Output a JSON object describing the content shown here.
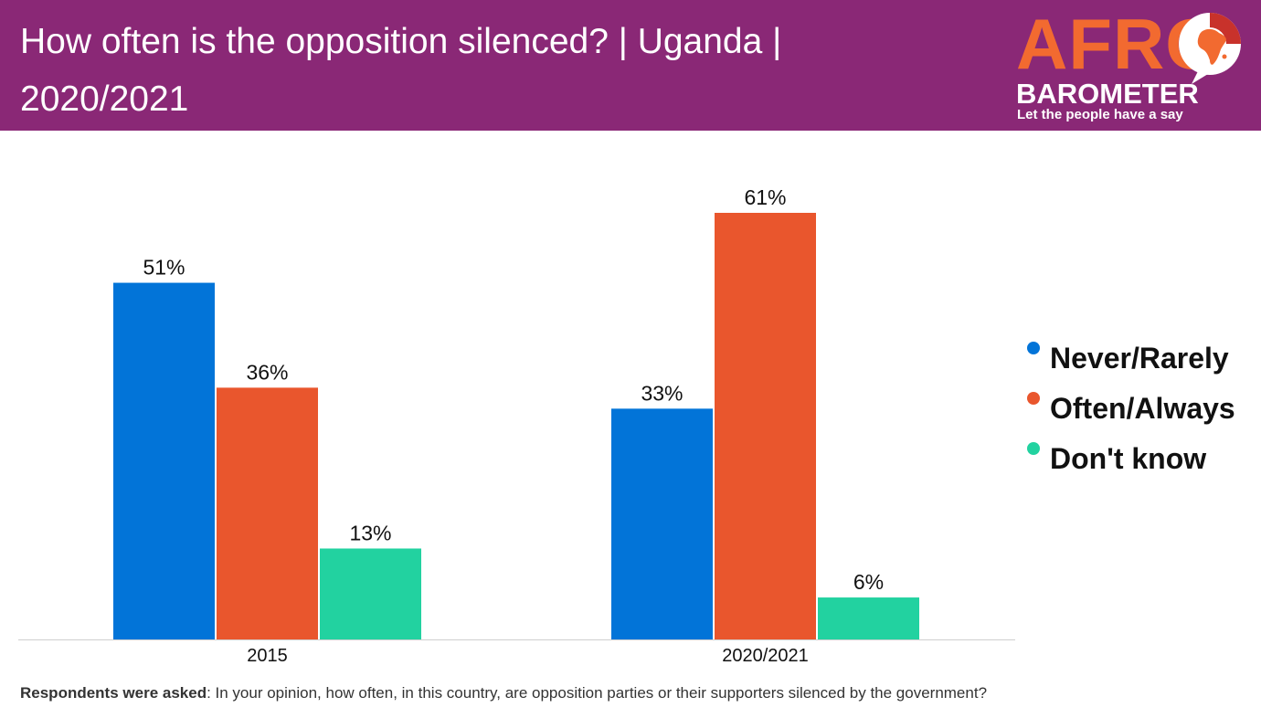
{
  "header": {
    "title": "How often is the opposition silenced? | Uganda | 2020/2021",
    "logo": {
      "afro": "AFRO",
      "barometer": "BAROMETER",
      "tagline": "Let the people have a say"
    }
  },
  "colors": {
    "header_bg": "#8a2876",
    "never_rarely": "#0274d8",
    "often_always": "#e9562d",
    "dont_know": "#22d2a0",
    "logo_orange": "#f26a30"
  },
  "chart_data": {
    "type": "bar",
    "title": "How often is the opposition silenced? | Uganda | 2020/2021",
    "categories": [
      "2015",
      "2020/2021"
    ],
    "series": [
      {
        "name": "Never/Rarely",
        "values": [
          51,
          33
        ],
        "labels": [
          "51%",
          "33%"
        ]
      },
      {
        "name": "Often/Always",
        "values": [
          36,
          61
        ],
        "labels": [
          "36%",
          "61%"
        ]
      },
      {
        "name": "Don't know",
        "values": [
          13,
          6
        ],
        "labels": [
          "13%",
          "6%"
        ]
      }
    ],
    "unit": "%",
    "ylim": [
      0,
      61
    ],
    "xlabel": "",
    "ylabel": "",
    "grid": false,
    "legend": "right"
  },
  "footnote": {
    "label": "Respondents were asked",
    "text": ": In your opinion, how often, in this country, are opposition parties or their supporters silenced by the government?"
  }
}
